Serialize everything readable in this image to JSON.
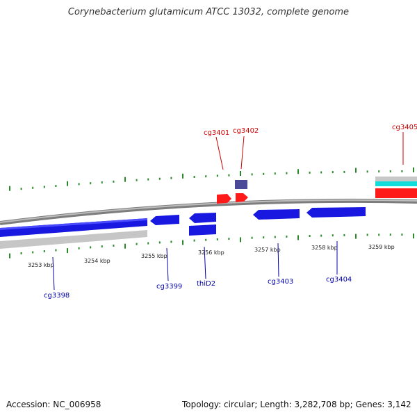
{
  "title": "Corynebacterium glutamicum ATCC 13032, complete genome",
  "footer": {
    "accession": "Accession: NC_006958",
    "summary": "Topology: circular; Length: 3,282,708 bp; Genes: 3,142"
  },
  "colors": {
    "forward_gene": "#ff1a1a",
    "reverse_gene": "#1515e8",
    "rna_gene": "#4a4a99",
    "label_forward": "#cc0000",
    "label_reverse": "#0000aa",
    "tick": "#2a8a2a",
    "backbone": "#8c8c8c",
    "gray_band": "#c4c4c4",
    "cyan_band": "#11dddd"
  },
  "scale_labels": [
    "3253 kbp",
    "3254 kbp",
    "3255 kbp",
    "3256 kbp",
    "3257 kbp",
    "3258 kbp",
    "3259 kbp"
  ],
  "forward_labels": [
    "cg3401",
    "cg3402",
    "cg3405"
  ],
  "reverse_labels": [
    "cg3398",
    "cg3399",
    "thiD2",
    "cg3403",
    "cg3404"
  ]
}
